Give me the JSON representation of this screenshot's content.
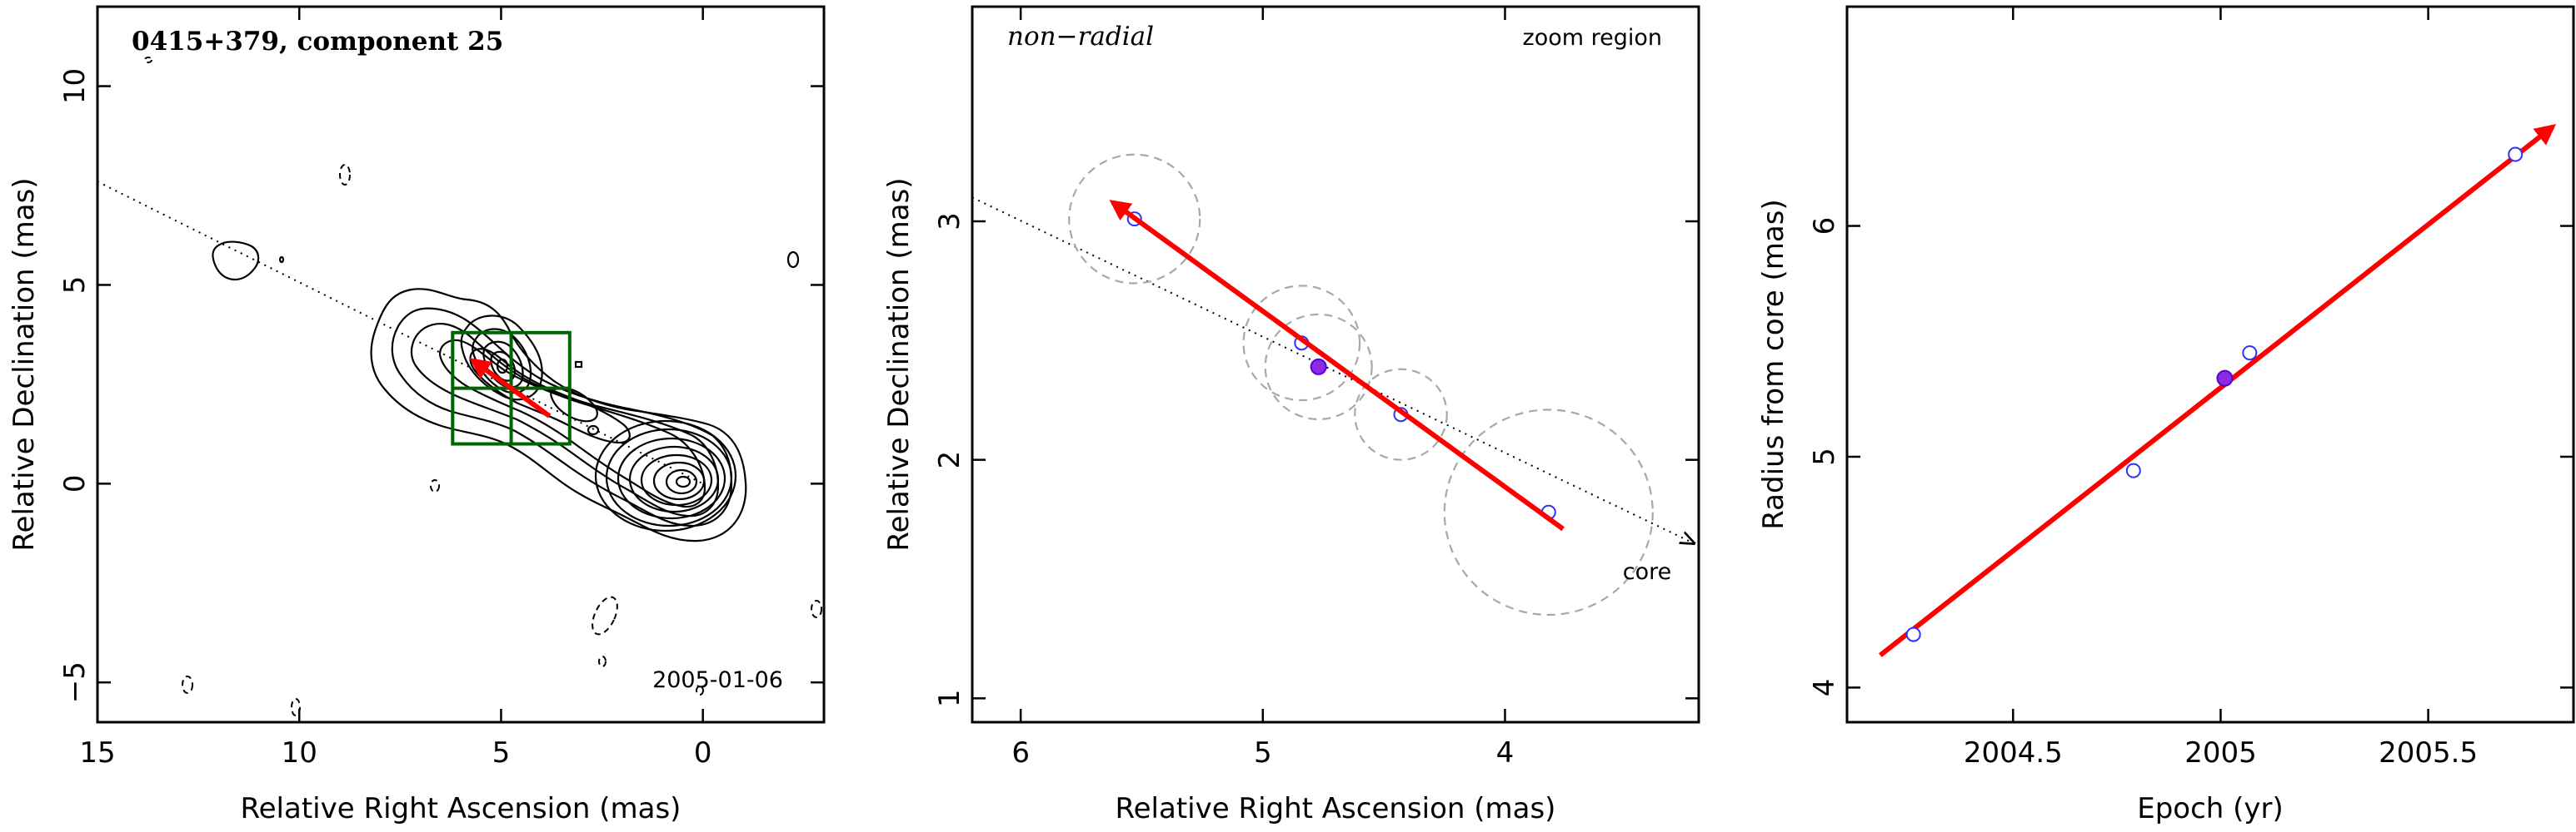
{
  "chart_data": [
    {
      "type": "contour",
      "title": "0415+379, component 25",
      "date_label": "2005-01-06",
      "xlabel": "Relative Right Ascension (mas)",
      "ylabel": "Relative Declination (mas)",
      "xlim": [
        15,
        -3
      ],
      "ylim": [
        -6,
        12
      ],
      "xticks": [
        15,
        10,
        5,
        0
      ],
      "yticks": [
        -5,
        0,
        5,
        10
      ],
      "xtick_labels": [
        "15",
        "10",
        "5",
        "0"
      ],
      "ytick_labels": [
        "−5",
        "0",
        "5",
        "10"
      ],
      "core": {
        "x": 0,
        "y": 0
      },
      "component_position": {
        "x": 4.8,
        "y": 2.4
      },
      "jet_direction_line": {
        "from": {
          "x": 15,
          "y": 7.6
        },
        "to": {
          "x": 0,
          "y": 0
        }
      },
      "zoom_box": {
        "x": [
          3.3,
          6.2
        ],
        "y": [
          1.0,
          3.8
        ],
        "center": {
          "x": 4.75,
          "y": 2.4
        }
      },
      "motion_vector": {
        "from": {
          "x": 3.8,
          "y": 1.7
        },
        "to": {
          "x": 5.7,
          "y": 3.1
        }
      },
      "colors": {
        "vector": "#ff0000",
        "zoom_box": "#006400"
      }
    },
    {
      "type": "scatter",
      "title": "non−radial",
      "annotation": "zoom region",
      "core_label": "core",
      "xlabel": "Relative Right Ascension (mas)",
      "ylabel": "Relative Declination (mas)",
      "xlim": [
        6.2,
        3.2
      ],
      "ylim": [
        0.9,
        3.9
      ],
      "xticks": [
        6,
        5,
        4
      ],
      "yticks": [
        1,
        2,
        3
      ],
      "xtick_labels": [
        "6",
        "5",
        "4"
      ],
      "ytick_labels": [
        "1",
        "2",
        "3"
      ],
      "points": [
        {
          "x": 5.53,
          "y": 3.01,
          "r": 0.27
        },
        {
          "x": 4.84,
          "y": 2.49,
          "r": 0.24
        },
        {
          "x": 4.43,
          "y": 2.19,
          "r": 0.19
        },
        {
          "x": 3.82,
          "y": 1.78,
          "r": 0.43
        }
      ],
      "filled_point": {
        "x": 4.77,
        "y": 2.39,
        "r": 0.22
      },
      "jet_direction_line": {
        "from": {
          "x": 6.2,
          "y": 3.1
        },
        "to": {
          "x": 3.22,
          "y": 1.65
        }
      },
      "motion_vector": {
        "from": {
          "x": 3.76,
          "y": 1.71
        },
        "to": {
          "x": 5.62,
          "y": 3.08
        }
      },
      "colors": {
        "vector": "#ff0000",
        "points": "#3030ff",
        "filled": "#8a2be2",
        "circles": "#a8a8a8"
      }
    },
    {
      "type": "scatter",
      "xlabel": "Epoch (yr)",
      "ylabel": "Radius from core (mas)",
      "xlim": [
        2004.1,
        2005.85
      ],
      "ylim": [
        3.85,
        6.95
      ],
      "xticks": [
        2004.5,
        2005,
        2005.5
      ],
      "yticks": [
        4,
        5,
        6
      ],
      "xtick_labels": [
        "2004.5",
        "2005",
        "2005.5"
      ],
      "ytick_labels": [
        "4",
        "5",
        "6"
      ],
      "points": [
        {
          "x": 2004.26,
          "y": 4.23
        },
        {
          "x": 2004.79,
          "y": 4.94
        },
        {
          "x": 2005.07,
          "y": 5.45
        },
        {
          "x": 2005.71,
          "y": 6.31
        }
      ],
      "filled_point": {
        "x": 2005.01,
        "y": 5.34
      },
      "fit_line": {
        "from": {
          "x": 2004.18,
          "y": 4.14
        },
        "to": {
          "x": 2005.8,
          "y": 6.43
        }
      },
      "colors": {
        "line": "#ff0000",
        "points": "#3030ff",
        "filled": "#8a2be2"
      }
    }
  ]
}
